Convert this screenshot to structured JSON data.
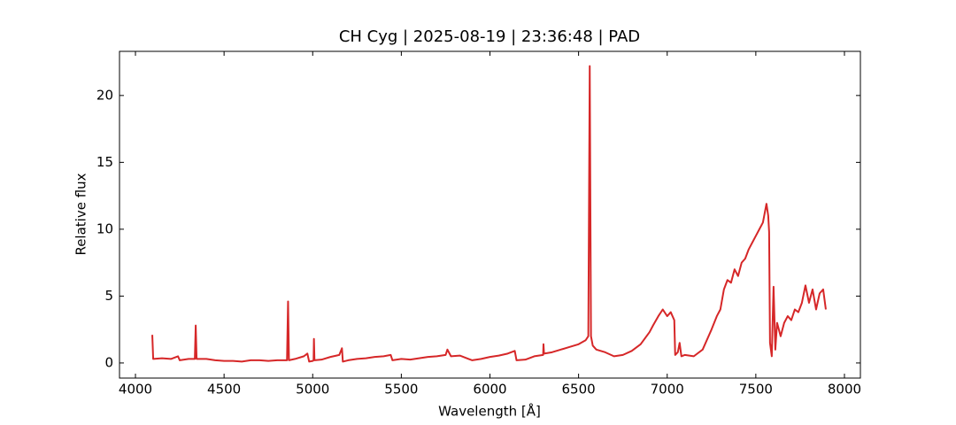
{
  "chart_data": {
    "type": "line",
    "title": "CH Cyg | 2025-08-19 | 23:36:48 | PAD",
    "xlabel": "Wavelength [Å]",
    "ylabel": "Relative flux",
    "xlim": [
      3910,
      8090
    ],
    "ylim": [
      -1.13,
      23.3
    ],
    "xticks": [
      4000,
      4500,
      5000,
      5500,
      6000,
      6500,
      7000,
      7500,
      8000
    ],
    "yticks": [
      0,
      5,
      10,
      15,
      20
    ],
    "grid": false,
    "x": [
      4095,
      4100,
      4150,
      4200,
      4240,
      4250,
      4300,
      4335,
      4340,
      4345,
      4400,
      4450,
      4500,
      4550,
      4600,
      4650,
      4700,
      4750,
      4800,
      4855,
      4861,
      4866,
      4900,
      4950,
      4970,
      4980,
      5000,
      5005,
      5007,
      5010,
      5050,
      5100,
      5150,
      5165,
      5170,
      5200,
      5250,
      5300,
      5350,
      5400,
      5440,
      5450,
      5500,
      5550,
      5600,
      5650,
      5700,
      5750,
      5760,
      5780,
      5830,
      5880,
      5900,
      5950,
      6000,
      6050,
      6100,
      6140,
      6150,
      6200,
      6250,
      6300,
      6302,
      6305,
      6350,
      6400,
      6450,
      6500,
      6540,
      6555,
      6563,
      6570,
      6580,
      6600,
      6650,
      6700,
      6750,
      6800,
      6850,
      6900,
      6920,
      6950,
      6975,
      7000,
      7020,
      7040,
      7045,
      7060,
      7070,
      7080,
      7100,
      7150,
      7200,
      7250,
      7280,
      7300,
      7320,
      7340,
      7360,
      7380,
      7400,
      7420,
      7440,
      7460,
      7480,
      7500,
      7520,
      7540,
      7560,
      7570,
      7575,
      7580,
      7590,
      7600,
      7610,
      7620,
      7640,
      7660,
      7680,
      7700,
      7720,
      7740,
      7760,
      7780,
      7800,
      7820,
      7840,
      7860,
      7880,
      7895
    ],
    "series": [
      {
        "name": "flux",
        "color": "#d62728",
        "values": [
          2.1,
          0.3,
          0.35,
          0.3,
          0.5,
          0.2,
          0.3,
          0.3,
          2.8,
          0.3,
          0.3,
          0.2,
          0.15,
          0.15,
          0.1,
          0.2,
          0.2,
          0.15,
          0.2,
          0.2,
          4.6,
          0.2,
          0.3,
          0.5,
          0.7,
          0.1,
          0.15,
          0.2,
          1.8,
          0.2,
          0.25,
          0.45,
          0.6,
          1.1,
          0.1,
          0.2,
          0.3,
          0.35,
          0.45,
          0.5,
          0.6,
          0.2,
          0.3,
          0.25,
          0.35,
          0.45,
          0.5,
          0.6,
          1.0,
          0.5,
          0.55,
          0.3,
          0.2,
          0.3,
          0.45,
          0.55,
          0.7,
          0.9,
          0.2,
          0.25,
          0.5,
          0.6,
          1.4,
          0.7,
          0.8,
          1.0,
          1.2,
          1.4,
          1.7,
          2.0,
          22.2,
          2.0,
          1.3,
          1.0,
          0.8,
          0.5,
          0.6,
          0.9,
          1.4,
          2.3,
          2.8,
          3.5,
          4.0,
          3.5,
          3.8,
          3.2,
          0.6,
          0.8,
          1.5,
          0.5,
          0.6,
          0.5,
          1.0,
          2.5,
          3.5,
          4.0,
          5.5,
          6.2,
          6.0,
          7.0,
          6.5,
          7.5,
          7.8,
          8.5,
          9.0,
          9.5,
          10.0,
          10.5,
          11.9,
          11.0,
          9.8,
          1.5,
          0.5,
          5.7,
          1.0,
          3.0,
          2.0,
          3.0,
          3.5,
          3.2,
          4.0,
          3.8,
          4.5,
          5.8,
          4.5,
          5.5,
          4.0,
          5.2,
          5.5,
          4.0
        ]
      }
    ]
  }
}
